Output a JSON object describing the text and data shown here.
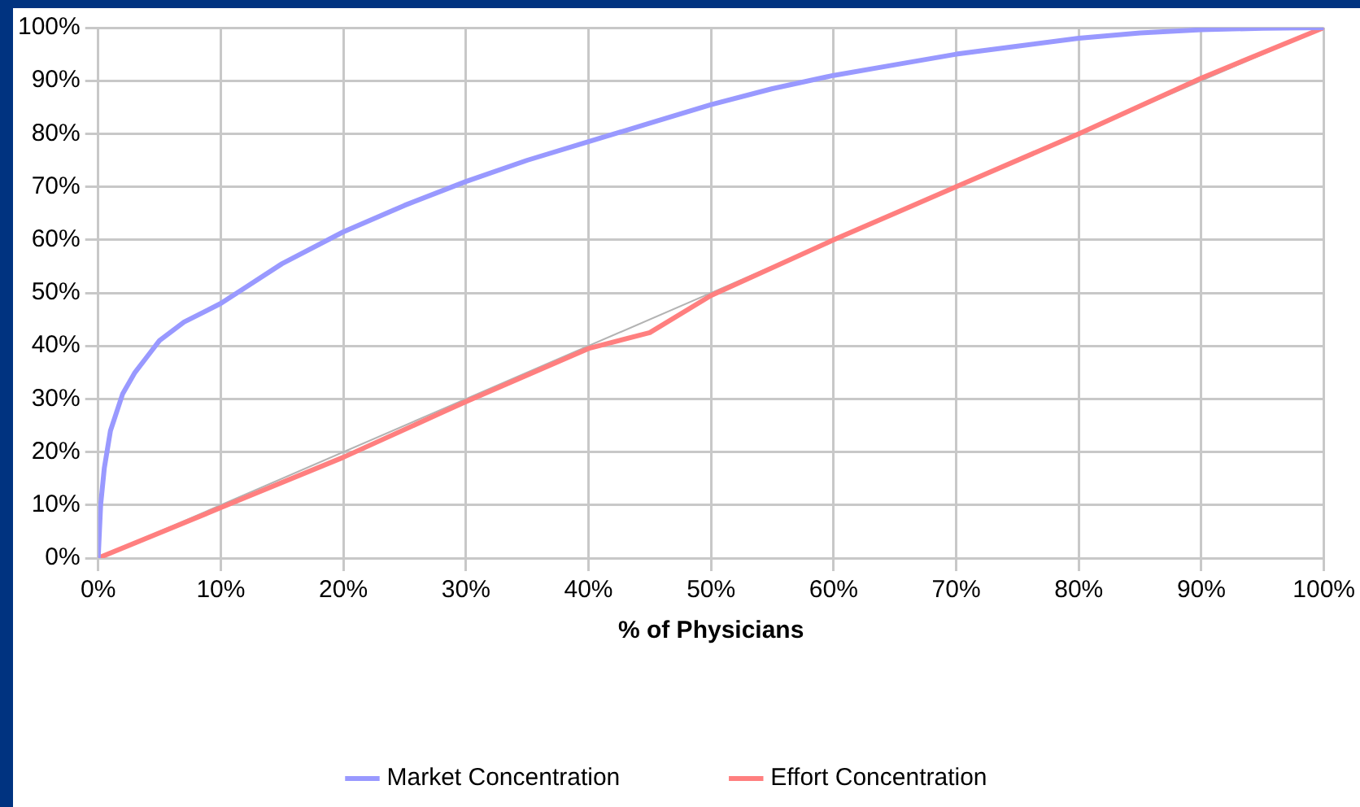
{
  "chart_data": {
    "type": "line",
    "xlabel": "% of Physicians",
    "xlim": [
      0,
      100
    ],
    "xticks": [
      {
        "value": 0,
        "label": "0%"
      },
      {
        "value": 10,
        "label": "10%"
      },
      {
        "value": 20,
        "label": "20%"
      },
      {
        "value": 30,
        "label": "30%"
      },
      {
        "value": 40,
        "label": "40%"
      },
      {
        "value": 50,
        "label": "50%"
      },
      {
        "value": 60,
        "label": "60%"
      },
      {
        "value": 70,
        "label": "70%"
      },
      {
        "value": 80,
        "label": "80%"
      },
      {
        "value": 90,
        "label": "90%"
      },
      {
        "value": 100,
        "label": "100%"
      }
    ],
    "ylim": [
      0,
      100
    ],
    "yticks": [
      {
        "value": 0,
        "label": "0%"
      },
      {
        "value": 10,
        "label": "10%"
      },
      {
        "value": 20,
        "label": "20%"
      },
      {
        "value": 30,
        "label": "30%"
      },
      {
        "value": 40,
        "label": "40%"
      },
      {
        "value": 50,
        "label": "50%"
      },
      {
        "value": 60,
        "label": "60%"
      },
      {
        "value": 70,
        "label": "70%"
      },
      {
        "value": 80,
        "label": "80%"
      },
      {
        "value": 90,
        "label": "90%"
      },
      {
        "value": 100,
        "label": "100%"
      }
    ],
    "grid": true,
    "legend": "bottom",
    "marker": "none",
    "line_style": "solid",
    "series": [
      {
        "name": "Market Concentration",
        "color": "#9999ff",
        "x": [
          0,
          0.2,
          0.5,
          1,
          2,
          3,
          4,
          5,
          7,
          10,
          12,
          15,
          20,
          25,
          30,
          35,
          40,
          45,
          50,
          55,
          60,
          65,
          70,
          75,
          80,
          85,
          90,
          95,
          100
        ],
        "values": [
          0,
          10,
          17,
          24,
          31,
          35,
          38,
          41,
          44.5,
          48,
          51,
          55.5,
          61.5,
          66.5,
          71,
          75,
          78.5,
          82,
          85.5,
          88.5,
          91,
          93,
          95,
          96.5,
          98,
          99,
          99.6,
          99.9,
          100
        ]
      },
      {
        "name": "Effort Concentration",
        "color": "#ff7f7f",
        "x": [
          0,
          10,
          20,
          30,
          40,
          45,
          50,
          60,
          70,
          80,
          90,
          100
        ],
        "values": [
          0,
          9.5,
          19,
          29.5,
          39.5,
          42.5,
          49.5,
          60,
          70,
          80,
          90.5,
          100
        ]
      },
      {
        "color": "#b3b3b3",
        "x": [
          0,
          100
        ],
        "values": [
          0,
          100
        ]
      }
    ]
  }
}
